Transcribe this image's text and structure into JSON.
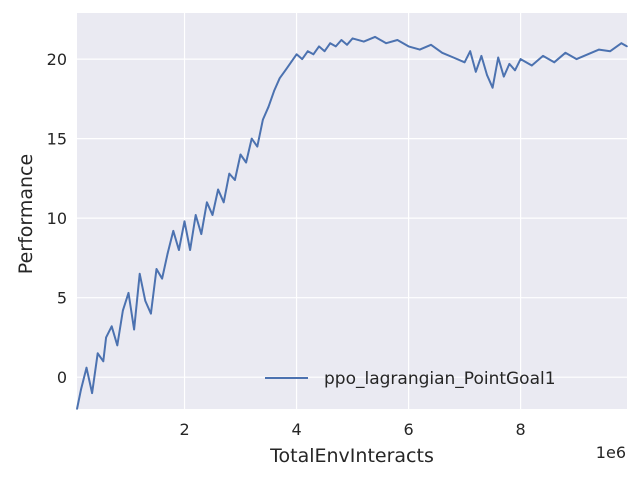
{
  "chart_data": {
    "type": "line",
    "xlabel": "TotalEnvInteracts",
    "ylabel": "Performance",
    "x_offset_label": "1e6",
    "x_scale": 1000000,
    "xlim": [
      0.08,
      9.9
    ],
    "ylim": [
      -2.0,
      22.9
    ],
    "x_ticks": [
      2,
      4,
      6,
      8
    ],
    "x_tick_labels": [
      "2",
      "4",
      "6",
      "8"
    ],
    "y_ticks": [
      0,
      5,
      10,
      15,
      20
    ],
    "y_tick_labels": [
      "0",
      "5",
      "10",
      "15",
      "20"
    ],
    "grid": true,
    "legend_position": "lower-right",
    "colors": {
      "background": "#EAEAF2",
      "grid": "#FFFFFF",
      "series": "#4C72B0"
    },
    "series": [
      {
        "name": "ppo_lagrangian_PointGoal1",
        "x": [
          0.08,
          0.15,
          0.25,
          0.35,
          0.45,
          0.55,
          0.6,
          0.7,
          0.8,
          0.9,
          1.0,
          1.1,
          1.2,
          1.3,
          1.4,
          1.5,
          1.6,
          1.7,
          1.8,
          1.9,
          2.0,
          2.1,
          2.2,
          2.3,
          2.4,
          2.5,
          2.6,
          2.7,
          2.8,
          2.9,
          3.0,
          3.1,
          3.2,
          3.3,
          3.4,
          3.5,
          3.6,
          3.7,
          3.8,
          3.9,
          4.0,
          4.1,
          4.2,
          4.3,
          4.4,
          4.5,
          4.6,
          4.7,
          4.8,
          4.9,
          5.0,
          5.2,
          5.4,
          5.6,
          5.8,
          6.0,
          6.2,
          6.4,
          6.6,
          6.8,
          7.0,
          7.1,
          7.2,
          7.3,
          7.4,
          7.5,
          7.6,
          7.7,
          7.8,
          7.9,
          8.0,
          8.2,
          8.4,
          8.6,
          8.8,
          9.0,
          9.2,
          9.4,
          9.6,
          9.8,
          9.9
        ],
        "y": [
          -2.0,
          -0.8,
          0.6,
          -1.0,
          1.5,
          1.0,
          2.5,
          3.2,
          2.0,
          4.2,
          5.3,
          3.0,
          6.5,
          4.8,
          4.0,
          6.8,
          6.2,
          7.8,
          9.2,
          8.0,
          9.8,
          8.0,
          10.2,
          9.0,
          11.0,
          10.2,
          11.8,
          11.0,
          12.8,
          12.4,
          14.0,
          13.5,
          15.0,
          14.5,
          16.2,
          17.0,
          18.0,
          18.8,
          19.3,
          19.8,
          20.3,
          20.0,
          20.5,
          20.3,
          20.8,
          20.5,
          21.0,
          20.8,
          21.2,
          20.9,
          21.3,
          21.1,
          21.4,
          21.0,
          21.2,
          20.8,
          20.6,
          20.9,
          20.4,
          20.1,
          19.8,
          20.5,
          19.2,
          20.2,
          19.0,
          18.2,
          20.1,
          18.9,
          19.7,
          19.3,
          20.0,
          19.6,
          20.2,
          19.8,
          20.4,
          20.0,
          20.3,
          20.6,
          20.5,
          21.0,
          20.8
        ]
      }
    ]
  }
}
